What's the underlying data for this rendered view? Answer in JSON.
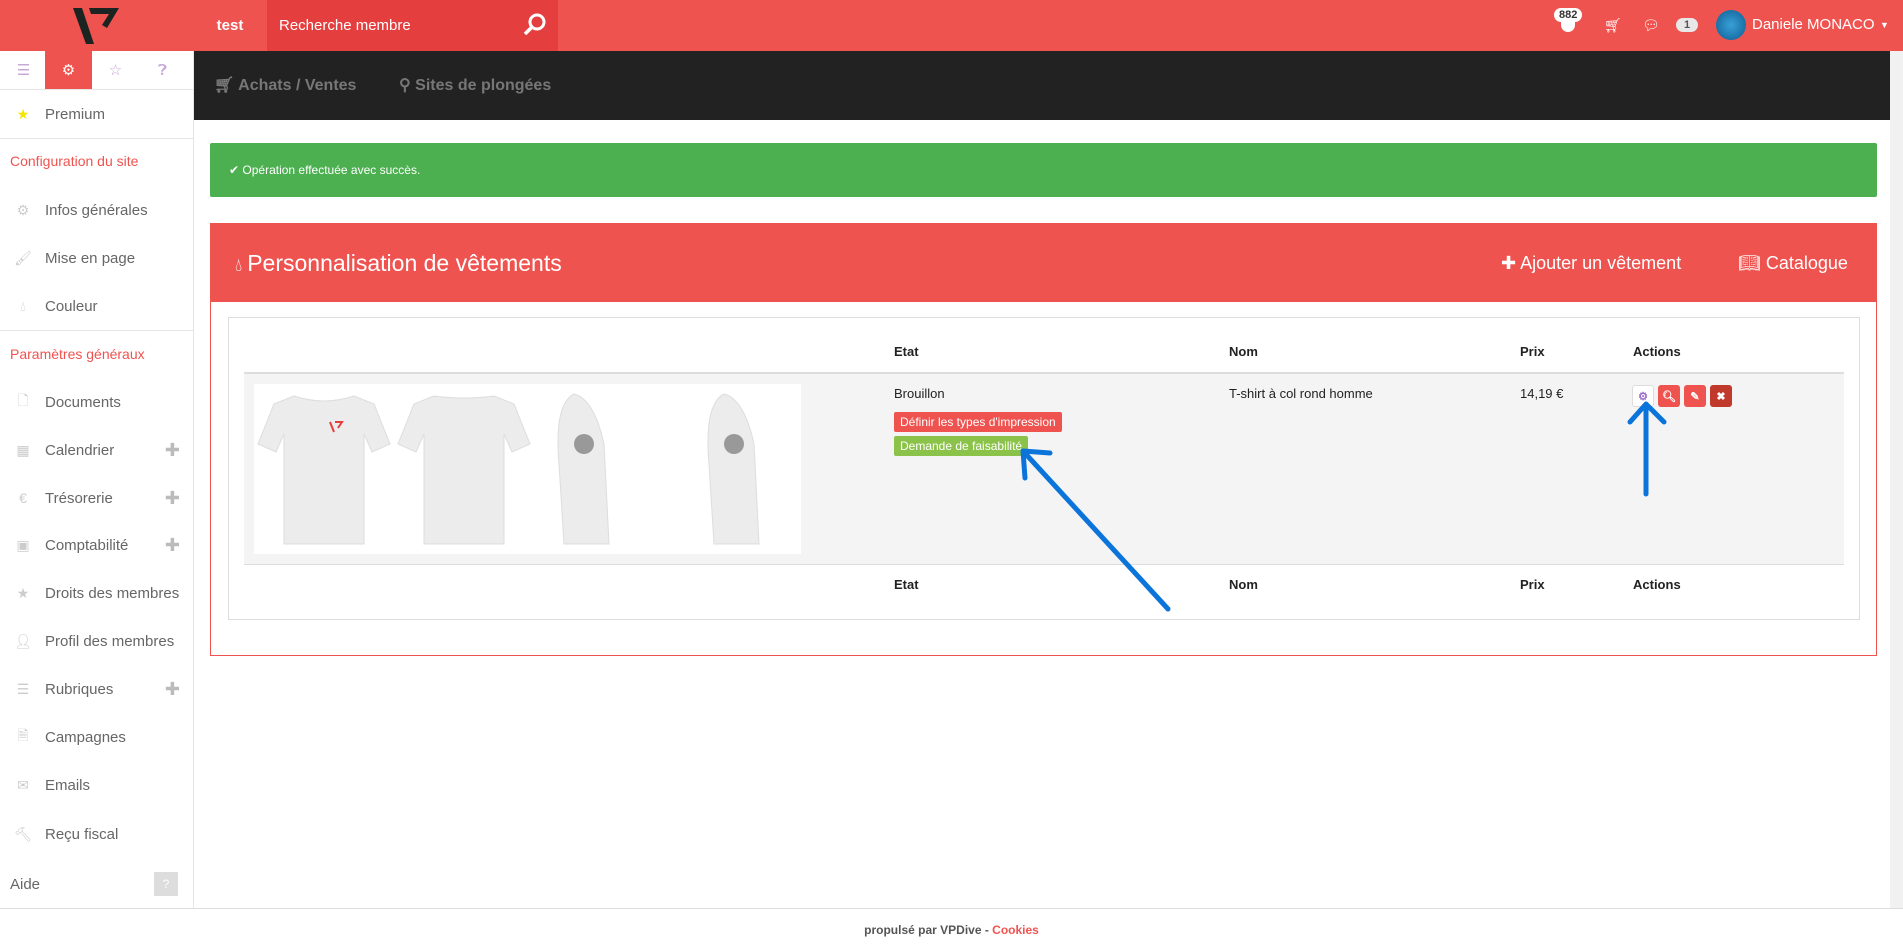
{
  "topbar": {
    "site": "test",
    "search_placeholder": "Recherche membre",
    "notifications": "882",
    "messages": "1",
    "user": "Daniele MONACO"
  },
  "subnav": [
    {
      "label": "Achats / Ventes",
      "icon": "cart-icon"
    },
    {
      "label": "Sites de plongées",
      "icon": "map-marker-icon"
    }
  ],
  "sidebar": {
    "premium": "Premium",
    "section1": "Configuration du site",
    "items1": [
      "Infos générales",
      "Mise en page",
      "Couleur"
    ],
    "section2": "Paramètres généraux",
    "items2": [
      "Documents",
      "Calendrier",
      "Trésorerie",
      "Comptabilité",
      "Droits des membres",
      "Profil des membres",
      "Rubriques",
      "Campagnes",
      "Emails",
      "Reçu fiscal"
    ],
    "help": "Aide"
  },
  "alert": "Opération effectuée avec succès.",
  "panel": {
    "title": "Personnalisation de vêtements",
    "add": "Ajouter un vêtement",
    "catalog": "Catalogue"
  },
  "table": {
    "headers": [
      "Etat",
      "Nom",
      "Prix",
      "Actions"
    ],
    "row": {
      "state": "Brouillon",
      "label_print": "Définir les types d'impression",
      "label_feas": "Demande de faisabilité",
      "name": "T-shirt à col rond homme",
      "price": "14,19 €"
    }
  },
  "footer": {
    "text": "propulsé par VPDive - ",
    "link": "Cookies"
  },
  "colors": {
    "brand": "#ef5350",
    "success": "#4caf50",
    "dark": "#222222",
    "annotation": "#0a74da"
  }
}
